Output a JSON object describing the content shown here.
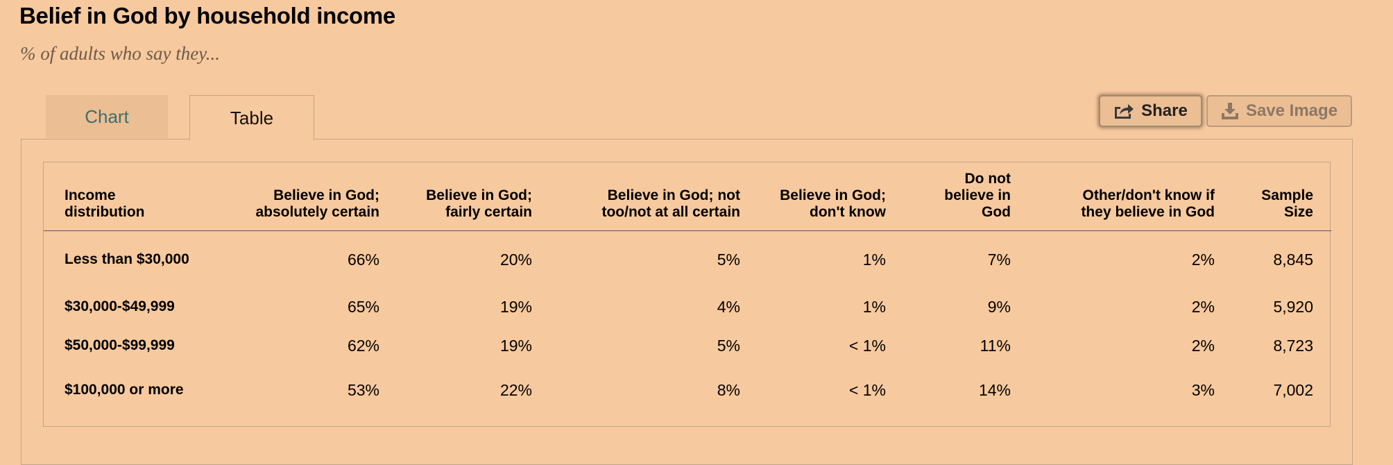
{
  "title": "Belief in God by household income",
  "subtitle": "% of adults who say they...",
  "tabs": {
    "chart": "Chart",
    "table": "Table",
    "active": "Table"
  },
  "buttons": {
    "share": "Share",
    "save": "Save Image"
  },
  "icons": {
    "share": "share-icon",
    "save": "download-icon"
  },
  "colors": {
    "background": "#f7c99e",
    "tab_inactive_text": "#3d6e6e"
  },
  "chart_data": {
    "type": "table",
    "columns": [
      "Income distribution",
      "Believe in God; absolutely certain",
      "Believe in God; fairly certain",
      "Believe in God; not too/not at all certain",
      "Believe in God; don't know",
      "Do not believe in God",
      "Other/don't know if they believe in God",
      "Sample Size"
    ],
    "rows": [
      [
        "Less than $30,000",
        "66%",
        "20%",
        "5%",
        "1%",
        "7%",
        "2%",
        "8,845"
      ],
      [
        "$30,000-$49,999",
        "65%",
        "19%",
        "4%",
        "1%",
        "9%",
        "2%",
        "5,920"
      ],
      [
        "$50,000-$99,999",
        "62%",
        "19%",
        "5%",
        "< 1%",
        "11%",
        "2%",
        "8,723"
      ],
      [
        "$100,000 or more",
        "53%",
        "22%",
        "8%",
        "< 1%",
        "14%",
        "3%",
        "7,002"
      ]
    ]
  }
}
